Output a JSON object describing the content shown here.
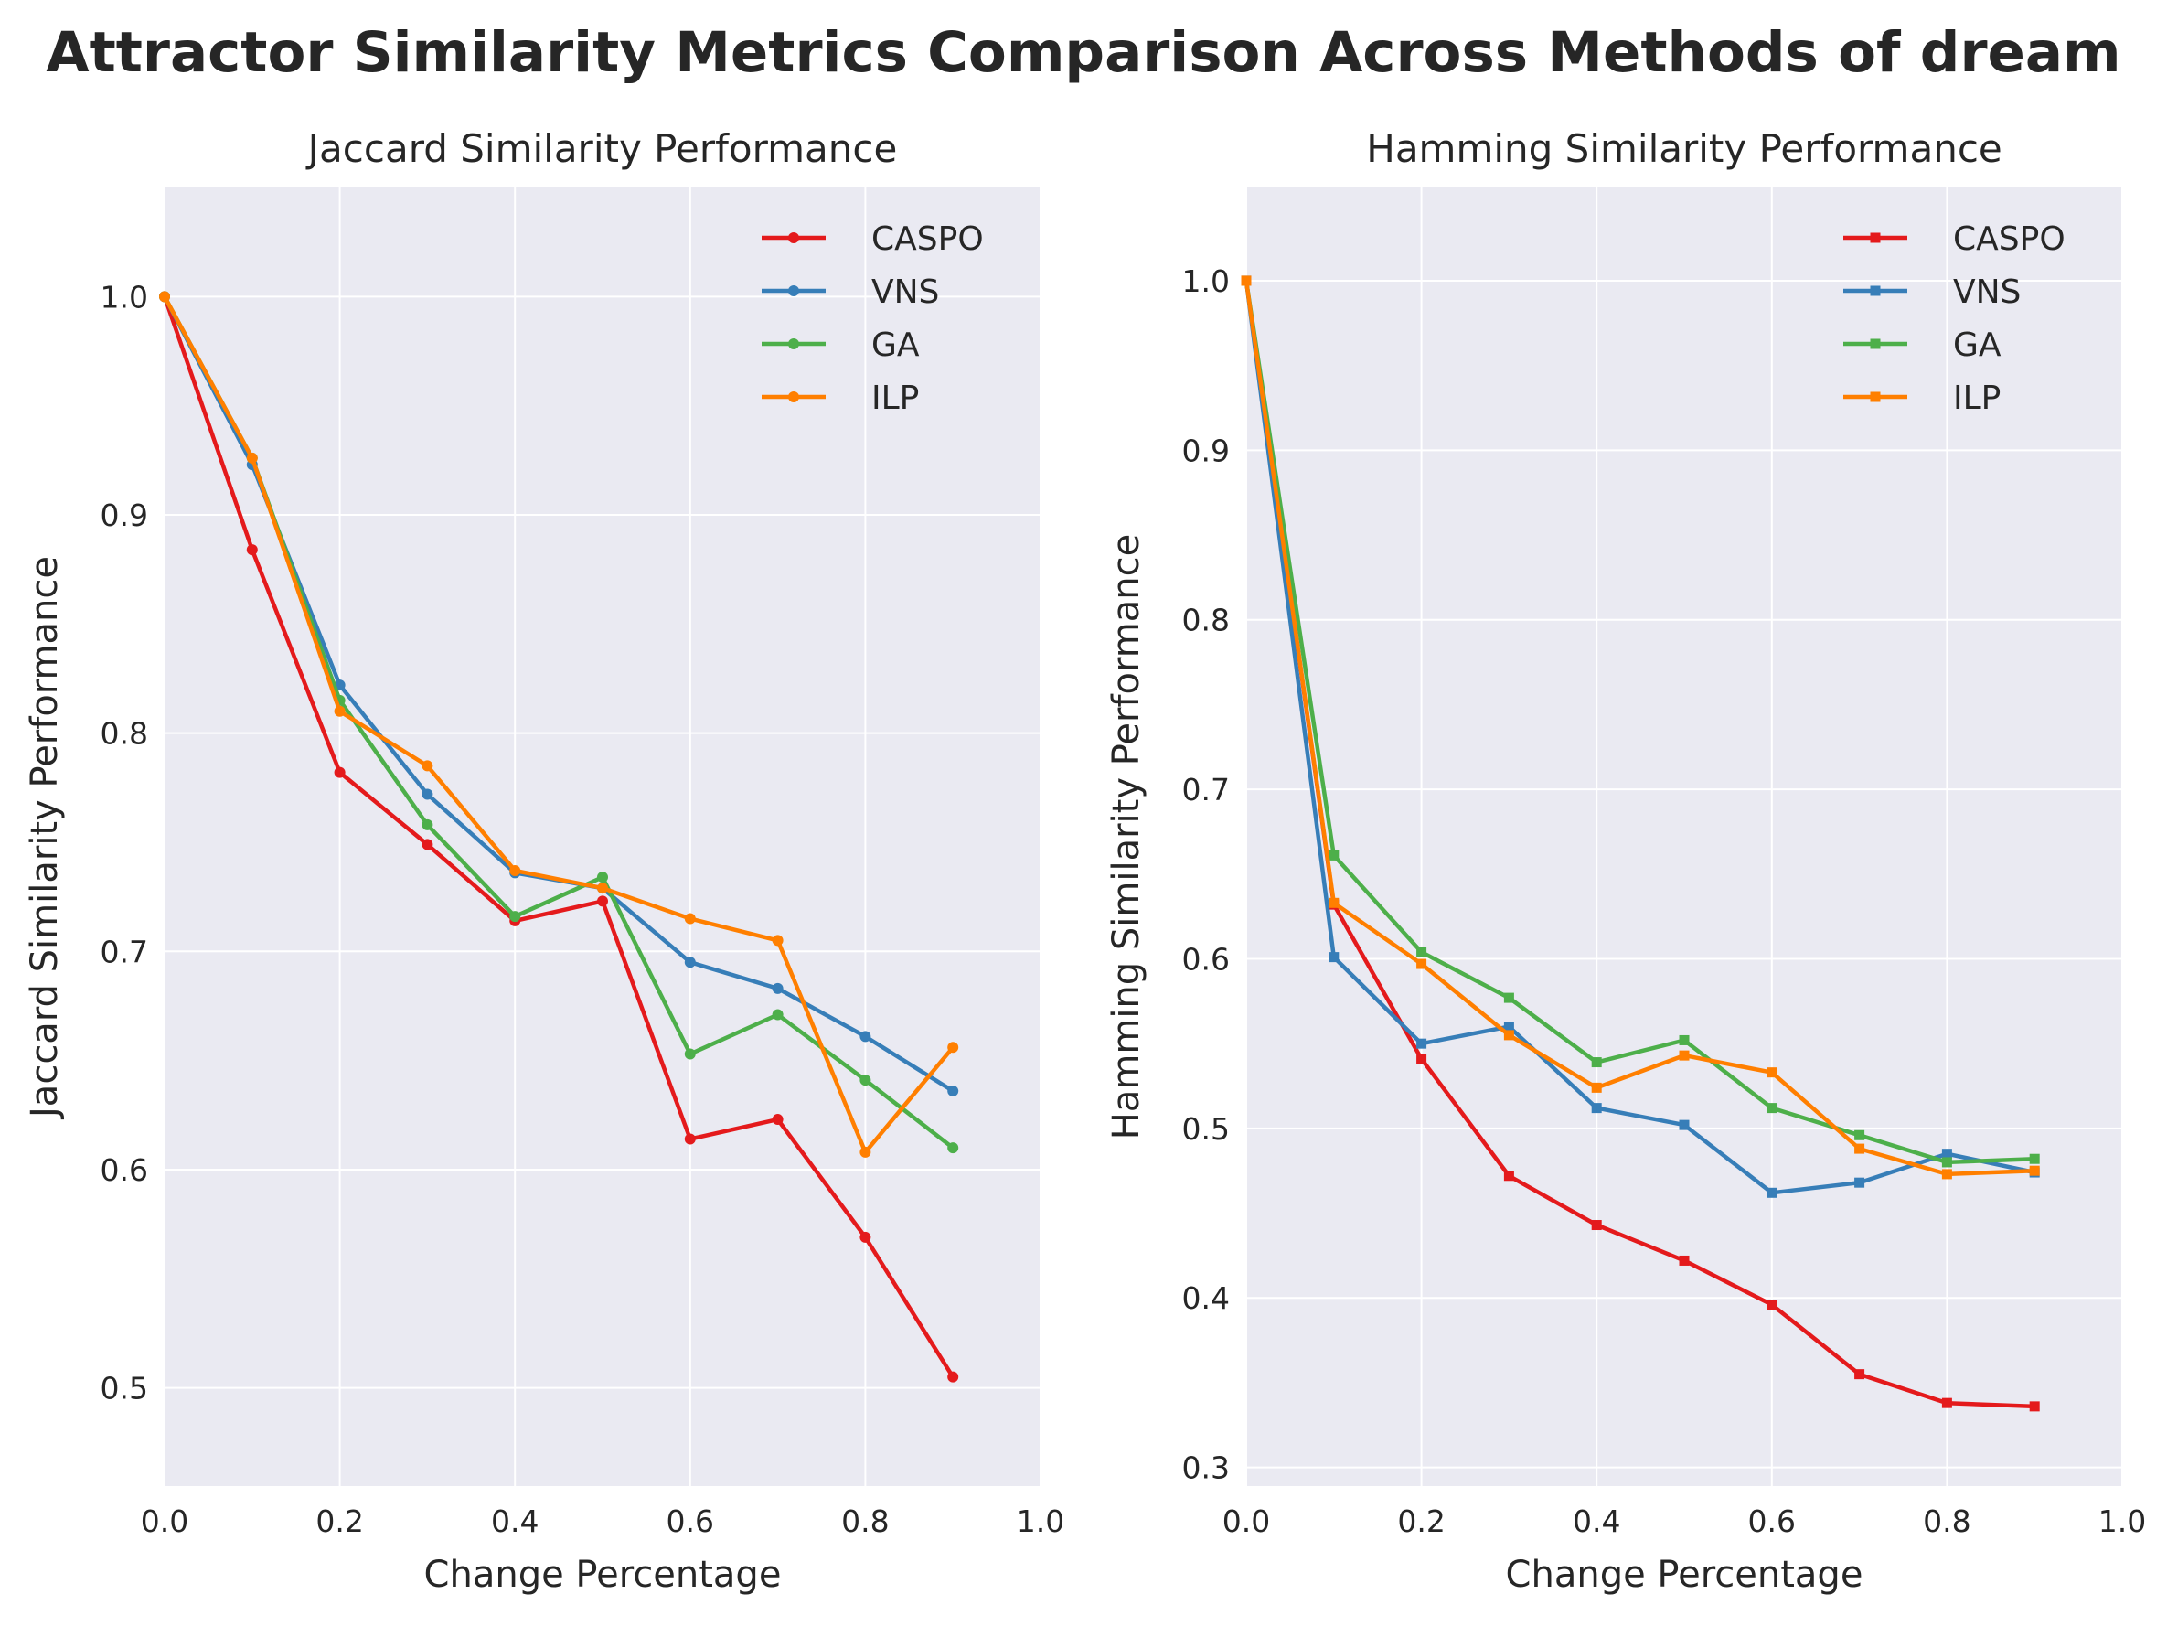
{
  "figure": {
    "title": "Attractor Similarity Metrics Comparison Across Methods of dream"
  },
  "chart_data": [
    {
      "type": "line",
      "title": "Jaccard Similarity Performance",
      "xlabel": "Change Percentage",
      "ylabel": "Jaccard Similarity Performance",
      "xlim": [
        0.0,
        1.0
      ],
      "ylim": [
        0.455,
        1.05
      ],
      "xticks": [
        "0.0",
        "0.2",
        "0.4",
        "0.6",
        "0.8",
        "1.0"
      ],
      "yticks": [
        "0.5",
        "0.6",
        "0.7",
        "0.8",
        "0.9",
        "1.0"
      ],
      "marker": "circle",
      "grid": true,
      "legend": "top-right",
      "x": [
        0.0,
        0.1,
        0.2,
        0.3,
        0.4,
        0.5,
        0.6,
        0.7,
        0.8,
        0.9
      ],
      "series": [
        {
          "name": "CASPO",
          "color": "#e41a1c",
          "values": [
            1.0,
            0.884,
            0.782,
            0.749,
            0.714,
            0.723,
            0.614,
            0.623,
            0.569,
            0.505
          ]
        },
        {
          "name": "VNS",
          "color": "#377eb8",
          "values": [
            1.0,
            0.923,
            0.822,
            0.772,
            0.736,
            0.729,
            0.695,
            0.683,
            0.661,
            0.636
          ]
        },
        {
          "name": "GA",
          "color": "#4daf4a",
          "values": [
            1.0,
            0.926,
            0.815,
            0.758,
            0.716,
            0.734,
            0.653,
            0.671,
            0.641,
            0.61
          ]
        },
        {
          "name": "ILP",
          "color": "#ff7f00",
          "values": [
            1.0,
            0.926,
            0.81,
            0.785,
            0.737,
            0.729,
            0.715,
            0.705,
            0.608,
            0.656
          ]
        }
      ]
    },
    {
      "type": "line",
      "title": "Hamming Similarity Performance",
      "xlabel": "Change Percentage",
      "ylabel": "Hamming Similarity Performance",
      "xlim": [
        0.0,
        1.0
      ],
      "ylim": [
        0.289,
        1.055
      ],
      "xticks": [
        "0.0",
        "0.2",
        "0.4",
        "0.6",
        "0.8",
        "1.0"
      ],
      "yticks": [
        "0.3",
        "0.4",
        "0.5",
        "0.6",
        "0.7",
        "0.8",
        "0.9",
        "1.0"
      ],
      "marker": "square",
      "grid": true,
      "legend": "top-right",
      "x": [
        0.0,
        0.1,
        0.2,
        0.3,
        0.4,
        0.5,
        0.6,
        0.7,
        0.8,
        0.9
      ],
      "series": [
        {
          "name": "CASPO",
          "color": "#e41a1c",
          "values": [
            1.0,
            0.632,
            0.541,
            0.472,
            0.443,
            0.422,
            0.396,
            0.355,
            0.338,
            0.336
          ]
        },
        {
          "name": "VNS",
          "color": "#377eb8",
          "values": [
            1.0,
            0.601,
            0.55,
            0.56,
            0.512,
            0.502,
            0.462,
            0.468,
            0.485,
            0.474
          ]
        },
        {
          "name": "GA",
          "color": "#4daf4a",
          "values": [
            1.0,
            0.661,
            0.604,
            0.577,
            0.539,
            0.552,
            0.512,
            0.496,
            0.48,
            0.482
          ]
        },
        {
          "name": "ILP",
          "color": "#ff7f00",
          "values": [
            1.0,
            0.633,
            0.597,
            0.555,
            0.524,
            0.543,
            0.533,
            0.488,
            0.473,
            0.475
          ]
        }
      ]
    }
  ]
}
